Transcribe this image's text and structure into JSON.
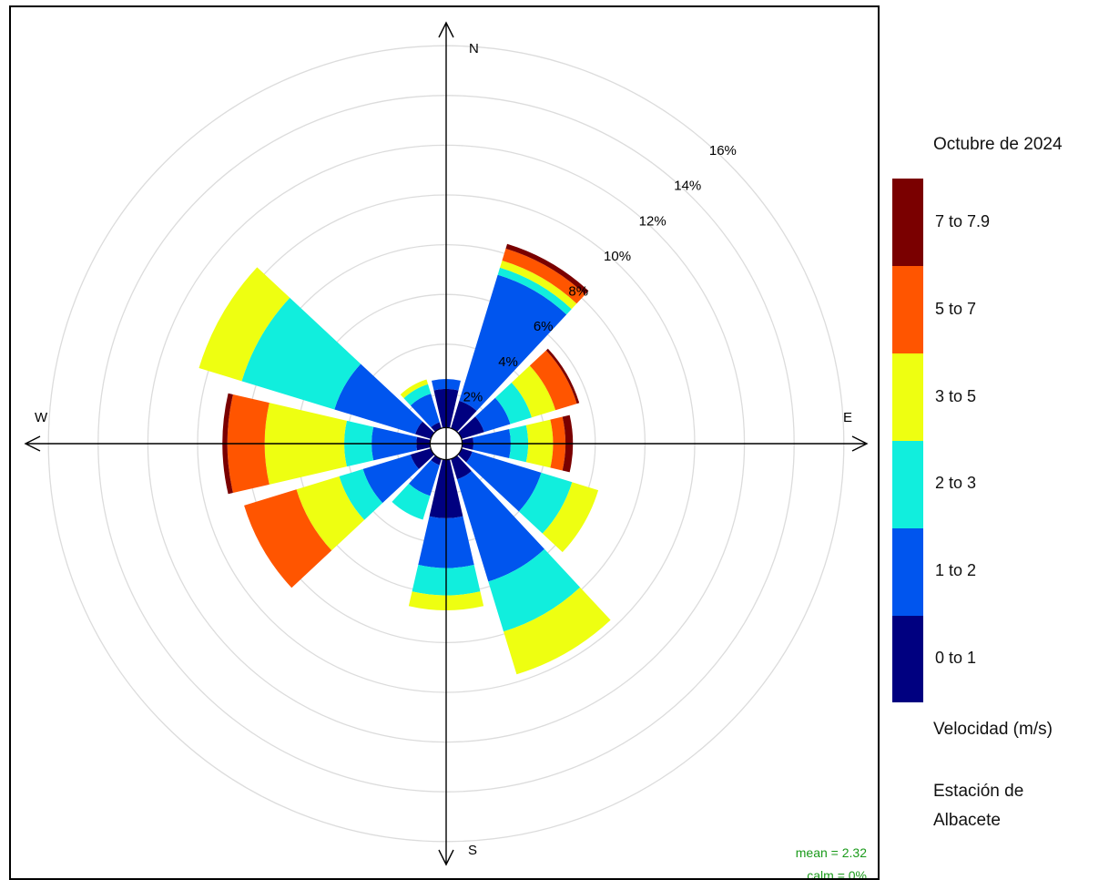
{
  "chart_data": {
    "type": "windrose",
    "title": "",
    "legend_title": "Octubre de 2024",
    "legend_unit_label": "Velocidad (m/s)",
    "station": [
      "Estación de",
      "Albacete"
    ],
    "directions_deg": [
      0,
      30,
      60,
      90,
      120,
      150,
      180,
      210,
      240,
      270,
      300,
      330
    ],
    "compass": {
      "n": "N",
      "e": "E",
      "s": "S",
      "w": "W"
    },
    "radial_axis": {
      "max": 16,
      "ticks": [
        2,
        4,
        6,
        8,
        10,
        12,
        14,
        16
      ],
      "tick_labels": [
        "2%",
        "4%",
        "6%",
        "8%",
        "10%",
        "12%",
        "14%",
        "16%"
      ],
      "unit": "%"
    },
    "calm_circle_radius_pct": 0.5,
    "bins": [
      {
        "label": "0 to 1",
        "color": "#000080"
      },
      {
        "label": "1 to 2",
        "color": "#0055ee"
      },
      {
        "label": "2 to 3",
        "color": "#11eedd"
      },
      {
        "label": "3 to 5",
        "color": "#eeff11"
      },
      {
        "label": "5 to 7",
        "color": "#ff5500"
      },
      {
        "label": "7 to 7.9",
        "color": "#7a0000"
      }
    ],
    "cumulative_pct": [
      [
        2.2,
        2.6,
        2.6,
        2.6,
        2.6,
        2.6
      ],
      [
        1.8,
        7.1,
        7.4,
        7.7,
        8.2,
        8.4
      ],
      [
        1.6,
        2.7,
        3.6,
        4.6,
        5.5,
        5.6
      ],
      [
        1.1,
        2.6,
        3.3,
        4.3,
        4.8,
        5.1
      ],
      [
        1.1,
        4.0,
        5.3,
        6.4,
        6.4,
        6.4
      ],
      [
        1.5,
        5.8,
        7.9,
        9.7,
        9.7,
        9.7
      ],
      [
        3.0,
        5.0,
        6.1,
        6.7,
        6.7,
        6.7
      ],
      [
        0.9,
        2.2,
        3.2,
        3.2,
        3.2,
        3.2
      ],
      [
        1.5,
        3.5,
        4.5,
        6.3,
        8.5,
        8.5
      ],
      [
        1.2,
        3.0,
        4.1,
        7.3,
        8.8,
        9.0
      ],
      [
        1.3,
        4.7,
        8.6,
        10.4,
        10.4,
        10.4
      ],
      [
        0.9,
        2.1,
        2.5,
        2.7,
        2.7,
        2.7
      ]
    ],
    "stats": {
      "mean": "mean = 2.32",
      "calm": "calm = 0%"
    },
    "grid": true
  }
}
